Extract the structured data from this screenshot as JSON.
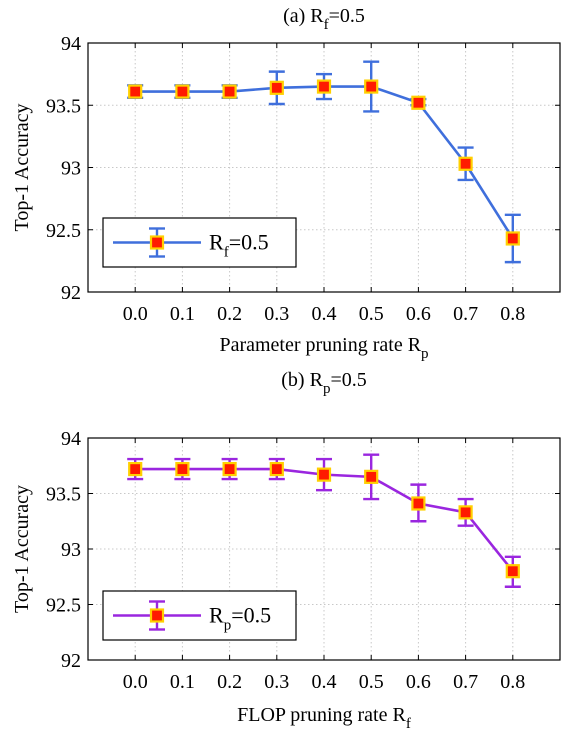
{
  "chart_data": [
    {
      "type": "line",
      "title": {
        "main": "(a) R",
        "sub": "f",
        "rest": "=0.5"
      },
      "xlabel": {
        "main": "Parameter pruning rate R",
        "sub": "p"
      },
      "ylabel": "Top-1 Accuracy",
      "x": [
        0.0,
        0.1,
        0.2,
        0.3,
        0.4,
        0.5,
        0.6,
        0.7,
        0.8
      ],
      "xticklabels": [
        "0.0",
        "0.1",
        "0.2",
        "0.3",
        "0.4",
        "0.5",
        "0.6",
        "0.7",
        "0.8"
      ],
      "ylim": [
        92,
        94
      ],
      "yticks": [
        92,
        92.5,
        93,
        93.5,
        94
      ],
      "yticklabels": [
        "92",
        "92.5",
        "93",
        "93.5",
        "94"
      ],
      "grid": true,
      "legend_position": "bottom-left",
      "series": [
        {
          "name": {
            "main": "R",
            "sub": "f",
            "rest": "=0.5"
          },
          "values": [
            93.61,
            93.61,
            93.61,
            93.64,
            93.65,
            93.65,
            93.52,
            93.03,
            92.43
          ],
          "err_low": [
            93.56,
            93.56,
            93.56,
            93.51,
            93.55,
            93.45,
            93.5,
            92.9,
            92.24
          ],
          "err_high": [
            93.66,
            93.66,
            93.66,
            93.77,
            93.75,
            93.85,
            93.55,
            93.16,
            92.62
          ],
          "line_color": "#3f6fdc"
        }
      ]
    },
    {
      "type": "line",
      "title": {
        "main": "(b) R",
        "sub": "p",
        "rest": "=0.5"
      },
      "xlabel": {
        "main": "FLOP pruning rate R",
        "sub": "f"
      },
      "ylabel": "Top-1 Accuracy",
      "x": [
        0.0,
        0.1,
        0.2,
        0.3,
        0.4,
        0.5,
        0.6,
        0.7,
        0.8
      ],
      "xticklabels": [
        "0.0",
        "0.1",
        "0.2",
        "0.3",
        "0.4",
        "0.5",
        "0.6",
        "0.7",
        "0.8"
      ],
      "ylim": [
        92,
        94
      ],
      "yticks": [
        92,
        92.5,
        93,
        93.5,
        94
      ],
      "yticklabels": [
        "92",
        "92.5",
        "93",
        "93.5",
        "94"
      ],
      "grid": true,
      "legend_position": "bottom-left",
      "series": [
        {
          "name": {
            "main": "R",
            "sub": "p",
            "rest": "=0.5"
          },
          "values": [
            93.72,
            93.72,
            93.72,
            93.72,
            93.67,
            93.65,
            93.41,
            93.33,
            92.8
          ],
          "err_low": [
            93.63,
            93.63,
            93.63,
            93.63,
            93.53,
            93.45,
            93.25,
            93.21,
            92.66
          ],
          "err_high": [
            93.81,
            93.81,
            93.81,
            93.81,
            93.81,
            93.85,
            93.58,
            93.45,
            92.93
          ],
          "line_color": "#9a26df"
        }
      ]
    }
  ],
  "marker": {
    "fill": "#ff1a00",
    "edge": "#ffd000"
  },
  "colors": {
    "axis": "#000000",
    "grid": "#c8c8c8",
    "background": "#ffffff"
  }
}
